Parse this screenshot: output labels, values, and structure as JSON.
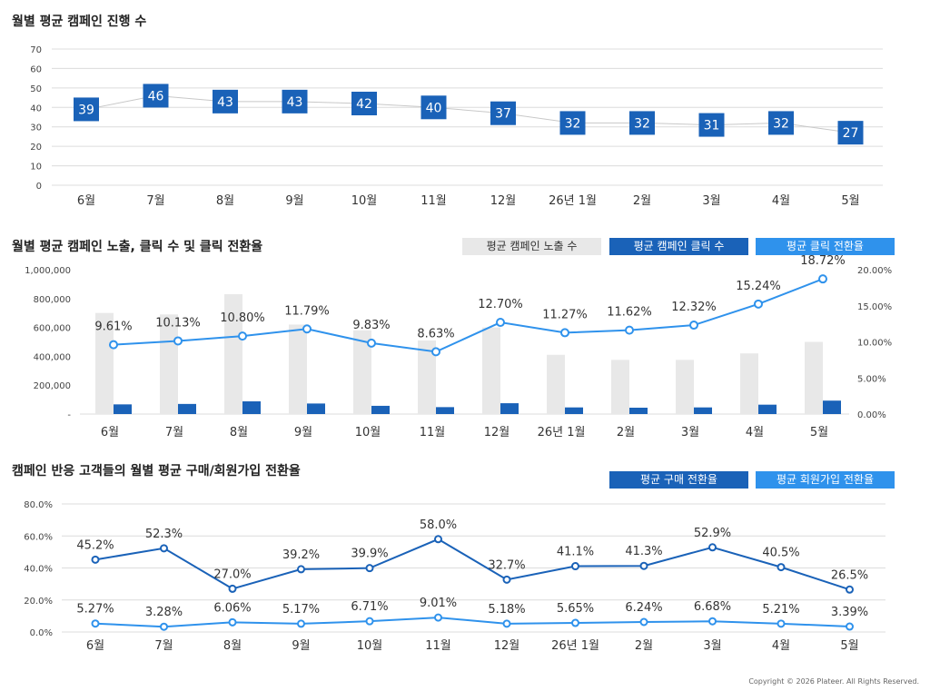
{
  "chart_data": [
    {
      "type": "line",
      "title": "월별 평균 캠페인 진행 수",
      "categories": [
        "6월",
        "7월",
        "8월",
        "9월",
        "10월",
        "11월",
        "12월",
        "26년 1월",
        "2월",
        "3월",
        "4월",
        "5월"
      ],
      "series": [
        {
          "values": [
            39,
            46,
            43,
            43,
            42,
            40,
            37,
            32,
            32,
            31,
            32,
            27
          ]
        }
      ],
      "ylim": [
        0,
        70
      ],
      "yticks": [
        "0",
        "10",
        "20",
        "30",
        "40",
        "50",
        "60",
        "70"
      ],
      "grid": true
    },
    {
      "type": "bar",
      "title": "월별 평균 캠페인 노출, 클릭 수 및 클릭 전환율",
      "categories": [
        "6월",
        "7월",
        "8월",
        "9월",
        "10월",
        "11월",
        "12월",
        "26년 1월",
        "2월",
        "3월",
        "4월",
        "5월"
      ],
      "series": [
        {
          "name": "평균 캠페인 노출 수",
          "values": [
            700000,
            690000,
            830000,
            620000,
            580000,
            510000,
            600000,
            410000,
            375000,
            375000,
            420000,
            500000
          ]
        },
        {
          "name": "평균 캠페인 클릭 수",
          "values": [
            67000,
            70000,
            88000,
            73000,
            57000,
            48000,
            75000,
            46000,
            44000,
            46000,
            65000,
            93000
          ]
        },
        {
          "name": "평균 클릭 전환율",
          "values": [
            9.61,
            10.13,
            10.8,
            11.79,
            9.83,
            8.63,
            12.7,
            11.27,
            11.62,
            12.32,
            15.24,
            18.72
          ]
        }
      ],
      "data_labels": [
        "9.61%",
        "10.13%",
        "10.80%",
        "11.79%",
        "9.83%",
        "8.63%",
        "12.70%",
        "11.27%",
        "11.62%",
        "12.32%",
        "15.24%",
        "18.72%"
      ],
      "ylim": [
        0,
        1000000
      ],
      "y2lim": [
        0,
        20
      ],
      "yticks": [
        "-",
        "200,000",
        "400,000",
        "600,000",
        "800,000",
        "1,000,000"
      ],
      "y2ticks": [
        "0.00%",
        "5.00%",
        "10.00%",
        "15.00%",
        "20.00%"
      ]
    },
    {
      "type": "line",
      "title": "캠페인 반응 고객들의 월별 평균 구매/회원가입 전환율",
      "categories": [
        "6월",
        "7월",
        "8월",
        "9월",
        "10월",
        "11월",
        "12월",
        "26년 1월",
        "2월",
        "3월",
        "4월",
        "5월"
      ],
      "series": [
        {
          "name": "평균 구매 전환율",
          "values": [
            45.2,
            52.3,
            27.0,
            39.2,
            39.9,
            58.0,
            32.7,
            41.1,
            41.3,
            52.9,
            40.5,
            26.5
          ]
        },
        {
          "name": "평균 회원가입 전환율",
          "values": [
            5.27,
            3.28,
            6.06,
            5.17,
            6.71,
            9.01,
            5.18,
            5.65,
            6.24,
            6.68,
            5.21,
            3.39
          ]
        }
      ],
      "data_labels": [
        [
          "45.2%",
          "52.3%",
          "27.0%",
          "39.2%",
          "39.9%",
          "58.0%",
          "32.7%",
          "41.1%",
          "41.3%",
          "52.9%",
          "40.5%",
          "26.5%"
        ],
        [
          "5.27%",
          "3.28%",
          "6.06%",
          "5.17%",
          "6.71%",
          "9.01%",
          "5.18%",
          "5.65%",
          "6.24%",
          "6.68%",
          "5.21%",
          "3.39%"
        ]
      ],
      "ylim": [
        0,
        80
      ],
      "yticks": [
        "0.0%",
        "20.0%",
        "40.0%",
        "60.0%",
        "80.0%"
      ],
      "grid": true
    }
  ],
  "colors": {
    "light_gray": "#e8e8e8",
    "dark_blue": "#1a62b8",
    "light_blue": "#2f92ec",
    "grid": "#dcdcdc",
    "thin_line": "#c8c8c8"
  },
  "footer": {
    "copyright": "Copyright © 2026 Plateer. All Rights Reserved."
  }
}
